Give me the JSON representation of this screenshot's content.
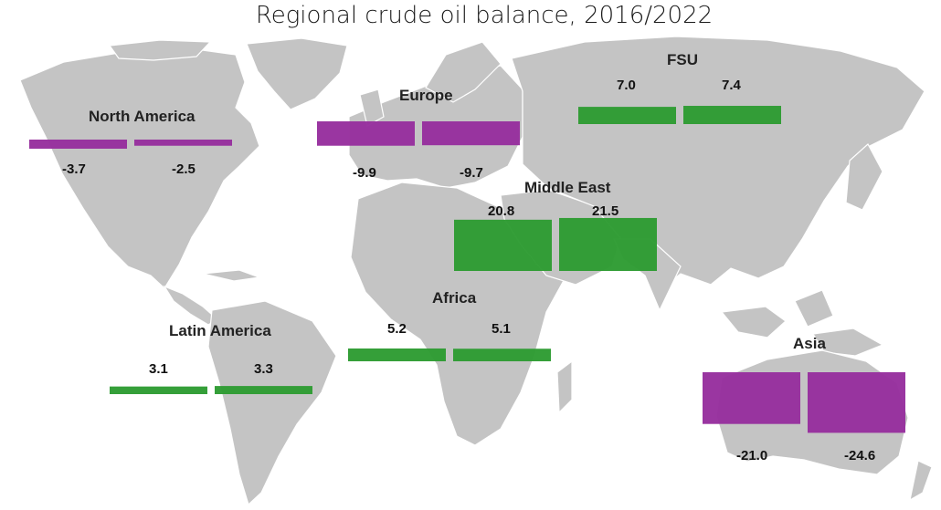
{
  "title": "Regional crude oil balance, 2016/2022",
  "colors": {
    "surplus": "#2e9c33",
    "deficit": "#972f9e",
    "land": "#c4c4c4",
    "ocean": "#ffffff"
  },
  "legend": null,
  "chart_data": {
    "type": "bar",
    "periods": [
      "2016",
      "2022"
    ],
    "value_axis": "none",
    "regions": [
      {
        "name": "North America",
        "values": [
          -3.7,
          -2.5
        ],
        "value_labels": [
          "-3.7",
          "-2.5"
        ]
      },
      {
        "name": "Europe",
        "values": [
          -9.9,
          -9.7
        ],
        "value_labels": [
          "-9.9",
          "-9.7"
        ]
      },
      {
        "name": "FSU",
        "values": [
          7.0,
          7.4
        ],
        "value_labels": [
          "7.0",
          "7.4"
        ]
      },
      {
        "name": "Middle East",
        "values": [
          20.8,
          21.5
        ],
        "value_labels": [
          "20.8",
          "21.5"
        ]
      },
      {
        "name": "Africa",
        "values": [
          5.2,
          5.1
        ],
        "value_labels": [
          "5.2",
          "5.1"
        ]
      },
      {
        "name": "Latin America",
        "values": [
          3.1,
          3.3
        ],
        "value_labels": [
          "3.1",
          "3.3"
        ]
      },
      {
        "name": "Asia",
        "values": [
          -21.0,
          -24.6
        ],
        "value_labels": [
          "-21.0",
          "-24.6"
        ]
      }
    ]
  }
}
